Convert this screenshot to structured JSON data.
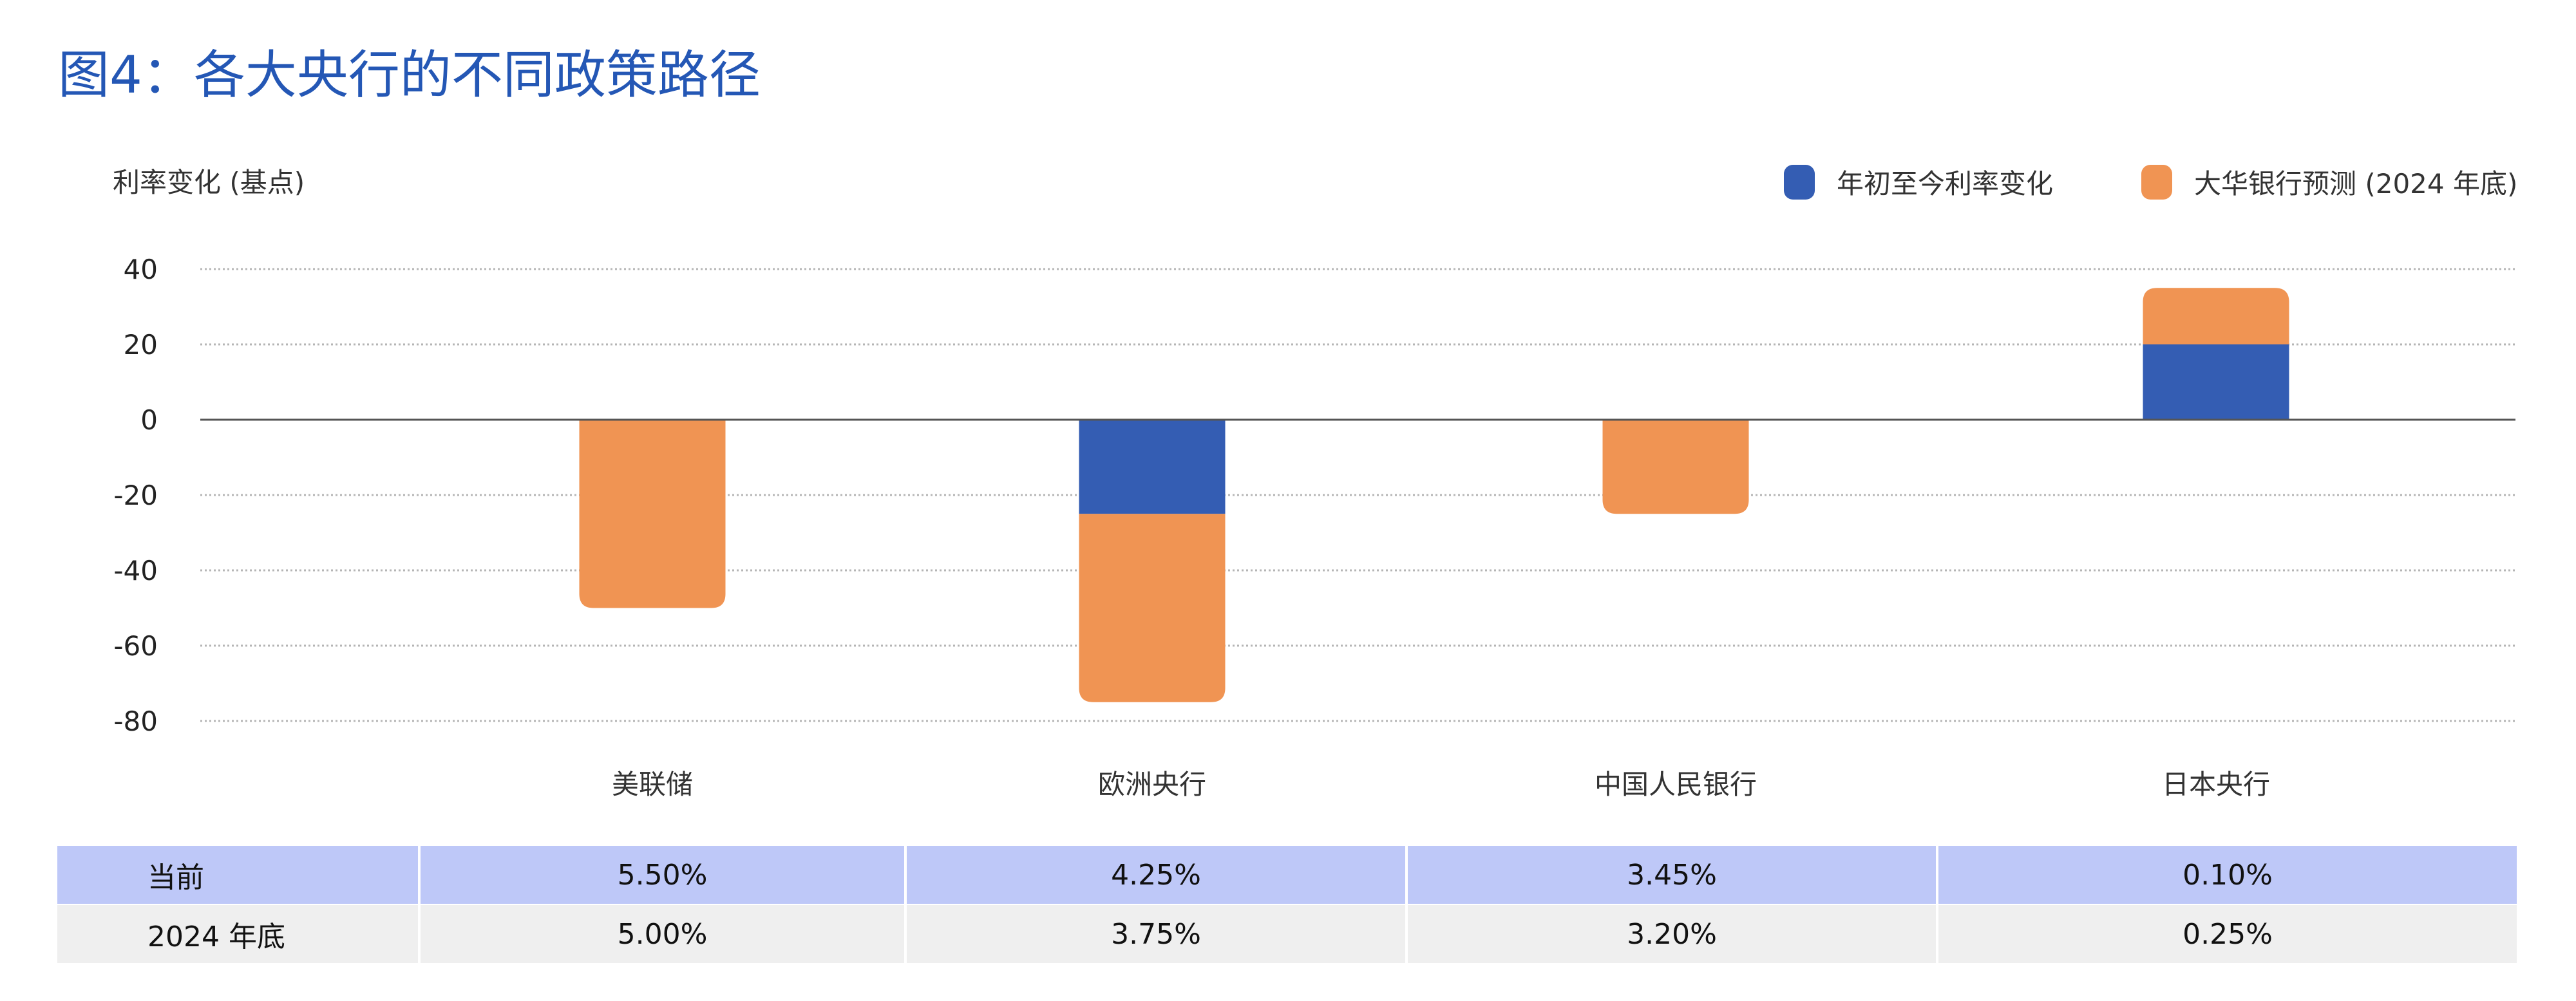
{
  "title": "图4：各大央行的不同政策路径",
  "chart_data": {
    "type": "bar",
    "stacked": true,
    "title": "图4：各大央行的不同政策路径",
    "ylabel": "利率变化 (基点)",
    "xlabel": "",
    "ylim": [
      -80,
      40
    ],
    "yticks": [
      40,
      20,
      0,
      -20,
      -40,
      -60,
      -80
    ],
    "grid": true,
    "legend_position": "top-right",
    "categories": [
      "美联储",
      "欧洲央行",
      "中国人民银行",
      "日本央行"
    ],
    "series": [
      {
        "name": "年初至今利率变化",
        "color": "#345db3",
        "values": [
          0,
          -25,
          0,
          20
        ]
      },
      {
        "name": "大华银行预测 (2024 年底)",
        "color": "#f09453",
        "values": [
          -50,
          -50,
          -25,
          15
        ]
      }
    ]
  },
  "table": {
    "rows": [
      {
        "label": "当前",
        "values": [
          "5.50%",
          "4.25%",
          "3.45%",
          "0.10%"
        ]
      },
      {
        "label": "2024 年底",
        "values": [
          "5.00%",
          "3.75%",
          "3.20%",
          "0.25%"
        ]
      }
    ]
  }
}
